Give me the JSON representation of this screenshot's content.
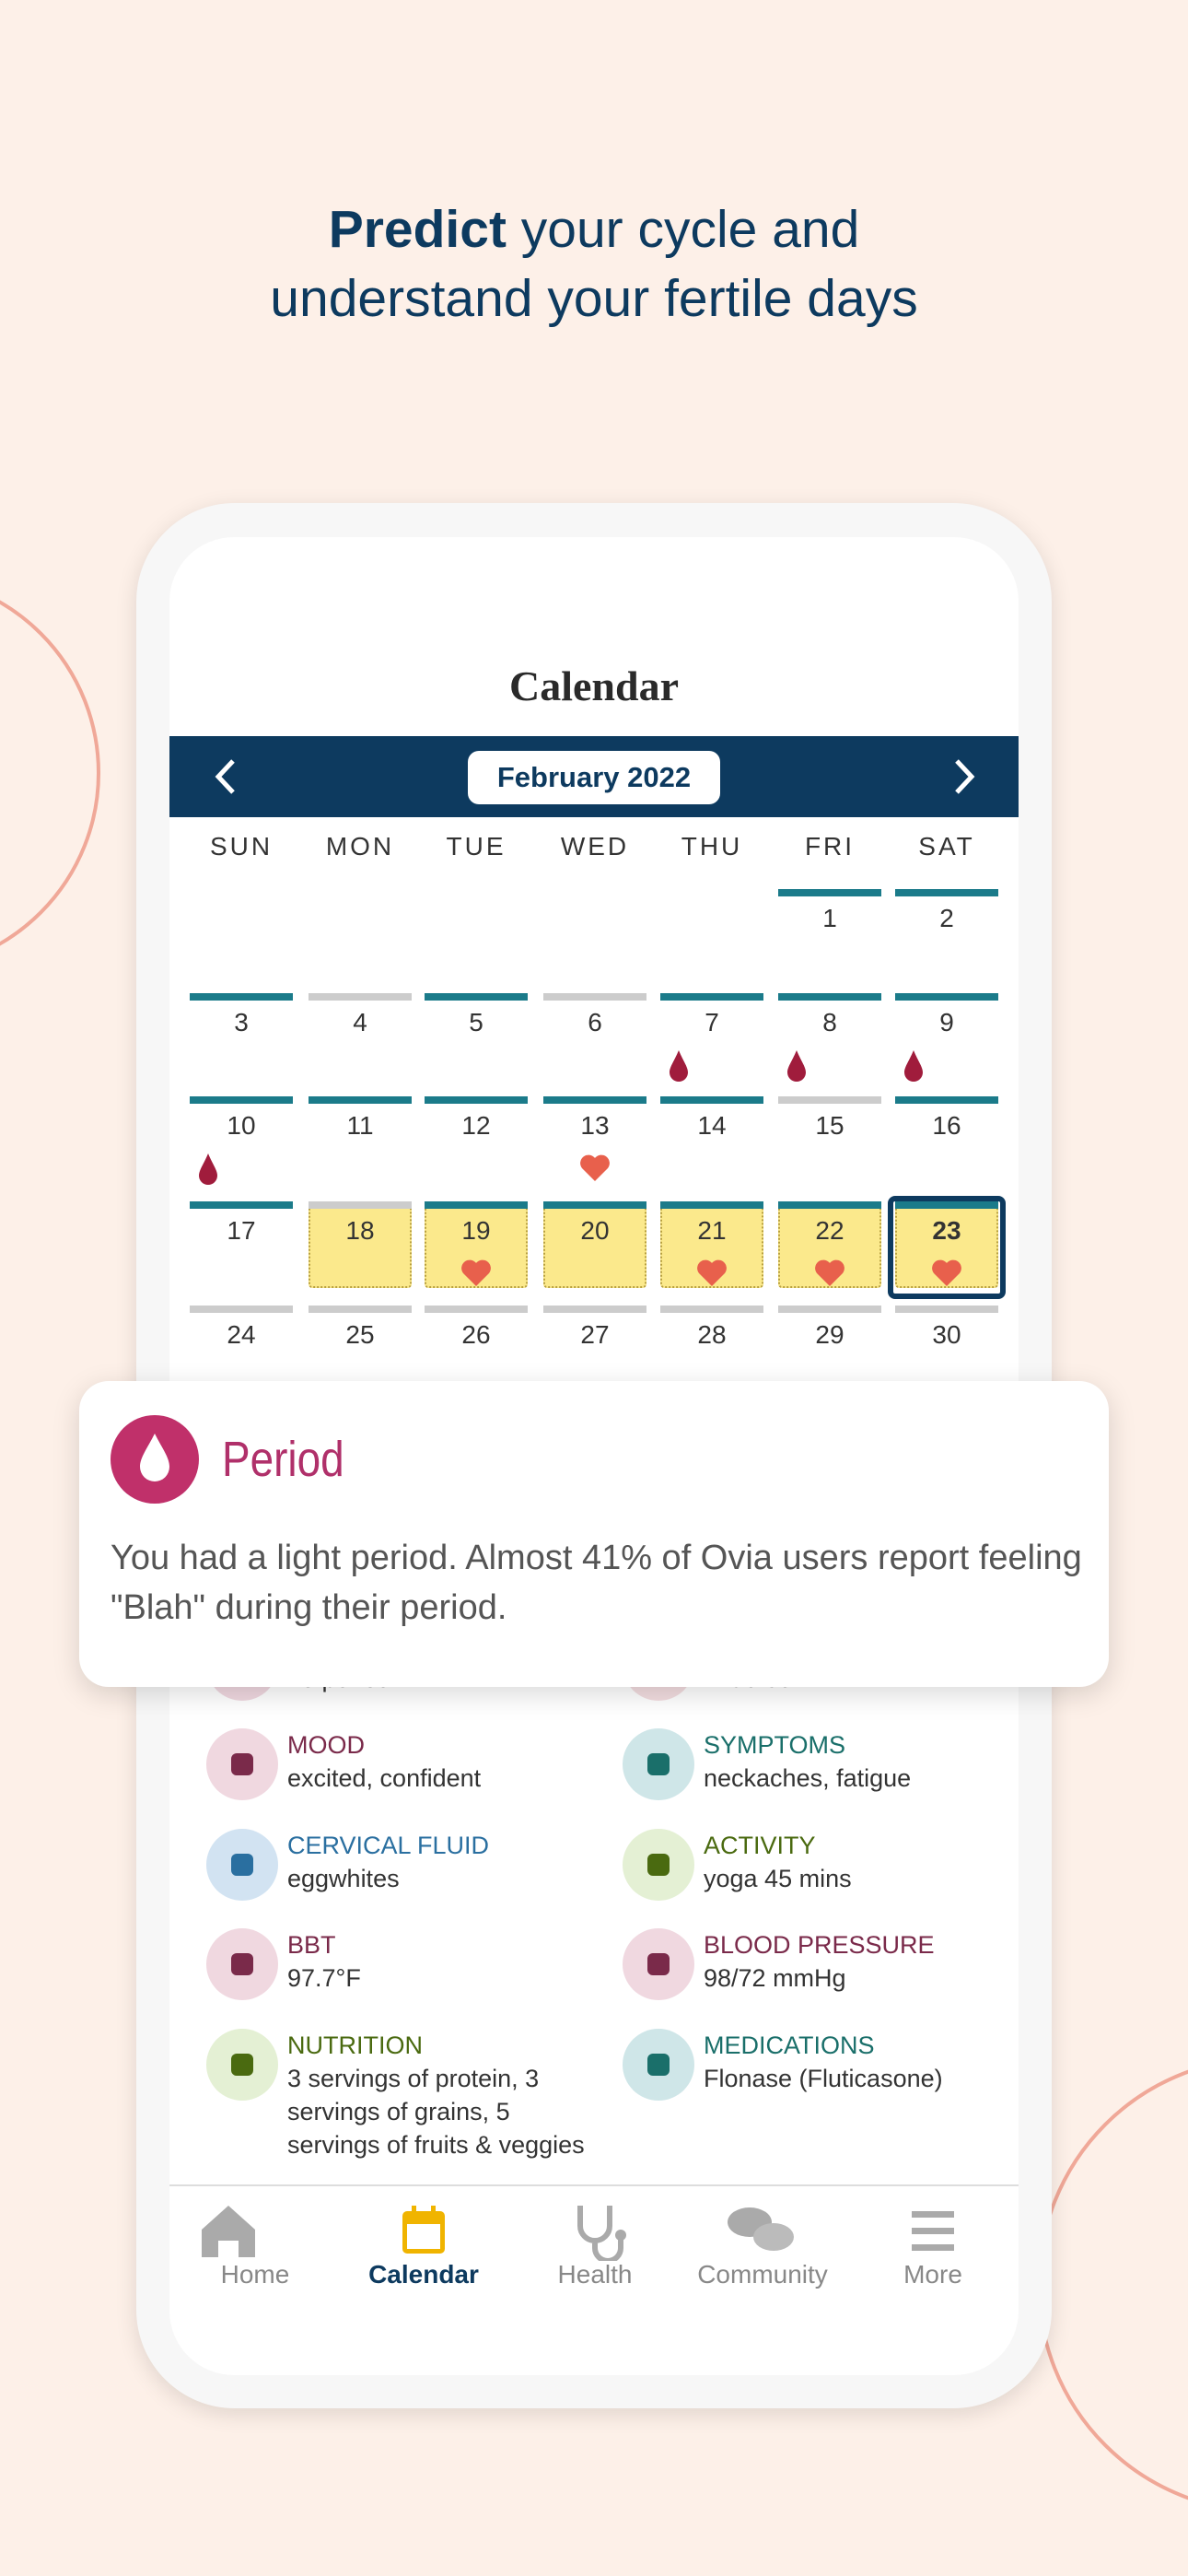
{
  "header": {
    "bold": "Predict",
    "rest": "your cycle and understand your fertile days"
  },
  "screen": {
    "title": "Calendar",
    "month": "February 2022",
    "weekdays": [
      "SUN",
      "MON",
      "TUE",
      "WED",
      "THU",
      "FRI",
      "SAT"
    ],
    "weeks": [
      [
        null,
        null,
        null,
        null,
        null,
        {
          "day": 1,
          "bar": "#1b7b8a"
        },
        {
          "day": 2,
          "bar": "#1b7b8a"
        }
      ],
      [
        {
          "day": 3,
          "bar": "#1b7b8a"
        },
        {
          "day": 4,
          "bar": "#cccccc"
        },
        {
          "day": 5,
          "bar": "#1b7b8a"
        },
        {
          "day": 6,
          "bar": "#cccccc"
        },
        {
          "day": 7,
          "bar": "#1b7b8a",
          "icon": "drop"
        },
        {
          "day": 8,
          "bar": "#1b7b8a",
          "icon": "drop"
        },
        {
          "day": 9,
          "bar": "#1b7b8a",
          "icon": "drop"
        }
      ],
      [
        {
          "day": 10,
          "bar": "#1b7b8a",
          "icon": "drop"
        },
        {
          "day": 11,
          "bar": "#1b7b8a"
        },
        {
          "day": 12,
          "bar": "#1b7b8a"
        },
        {
          "day": 13,
          "bar": "#1b7b8a",
          "icon": "heart"
        },
        {
          "day": 14,
          "bar": "#1b7b8a"
        },
        {
          "day": 15,
          "bar": "#cccccc"
        },
        {
          "day": 16,
          "bar": "#1b7b8a"
        }
      ],
      [
        {
          "day": 17,
          "bar": "#1b7b8a"
        },
        {
          "day": 18,
          "bar": "#cccccc",
          "fertile": true
        },
        {
          "day": 19,
          "bar": "#1b7b8a",
          "icon": "heart",
          "fertile": true
        },
        {
          "day": 20,
          "bar": "#1b7b8a",
          "fertile": true
        },
        {
          "day": 21,
          "bar": "#1b7b8a",
          "icon": "heart",
          "fertile": true
        },
        {
          "day": 22,
          "bar": "#1b7b8a",
          "icon": "heart",
          "fertile": true
        },
        {
          "day": 23,
          "bar": "#1b7b8a",
          "icon": "heart",
          "fertile": true,
          "selected": true
        }
      ],
      [
        {
          "day": 24,
          "bar": "#cccccc"
        },
        {
          "day": 25,
          "bar": "#cccccc"
        },
        {
          "day": 26,
          "bar": "#cccccc"
        },
        {
          "day": 27,
          "bar": "#cccccc"
        },
        {
          "day": 28,
          "bar": "#cccccc"
        },
        {
          "day": 29,
          "bar": "#cccccc"
        },
        {
          "day": 30,
          "bar": "#cccccc"
        }
      ]
    ]
  },
  "popup": {
    "title": "Period",
    "text": "You had a light period. Almost 41% of Ovia users report feeling \"Blah\" during their period."
  },
  "details": [
    {
      "value": "no period",
      "color": "#7a2a4a",
      "bg": "#f0d8e0"
    },
    {
      "value": "I had sex",
      "color": "#7a2a4a",
      "bg": "#f3dde0"
    },
    {
      "label": "MOOD",
      "value": "excited, confident",
      "color": "#7a2a4a",
      "bg": "#f0d8e0"
    },
    {
      "label": "SYMPTOMS",
      "value": "neckaches, fatigue",
      "color": "#1a6f6a",
      "bg": "#cfe6e8"
    },
    {
      "label": "CERVICAL FLUID",
      "value": "eggwhites",
      "color": "#2a6fa0",
      "bg": "#d2e3f2"
    },
    {
      "label": "ACTIVITY",
      "value": "yoga 45 mins",
      "color": "#4a6a10",
      "bg": "#e4f0d4"
    },
    {
      "label": "BBT",
      "value": "97.7°F",
      "color": "#7a2a4a",
      "bg": "#f0d8e0"
    },
    {
      "label": "BLOOD PRESSURE",
      "value": "98/72 mmHg",
      "color": "#7a2a4a",
      "bg": "#f0d8e0"
    },
    {
      "label": "NUTRITION",
      "value": "3 servings of protein, 3 servings of grains, 5 servings of fruits & veggies",
      "color": "#4a6a10",
      "bg": "#e4f0d4"
    },
    {
      "label": "MEDICATIONS",
      "value": "Flonase (Fluticasone)",
      "color": "#1a6f6a",
      "bg": "#cfe6e8"
    }
  ],
  "tabs": [
    "Home",
    "Calendar",
    "Health",
    "Community",
    "More"
  ],
  "active_tab": 1
}
